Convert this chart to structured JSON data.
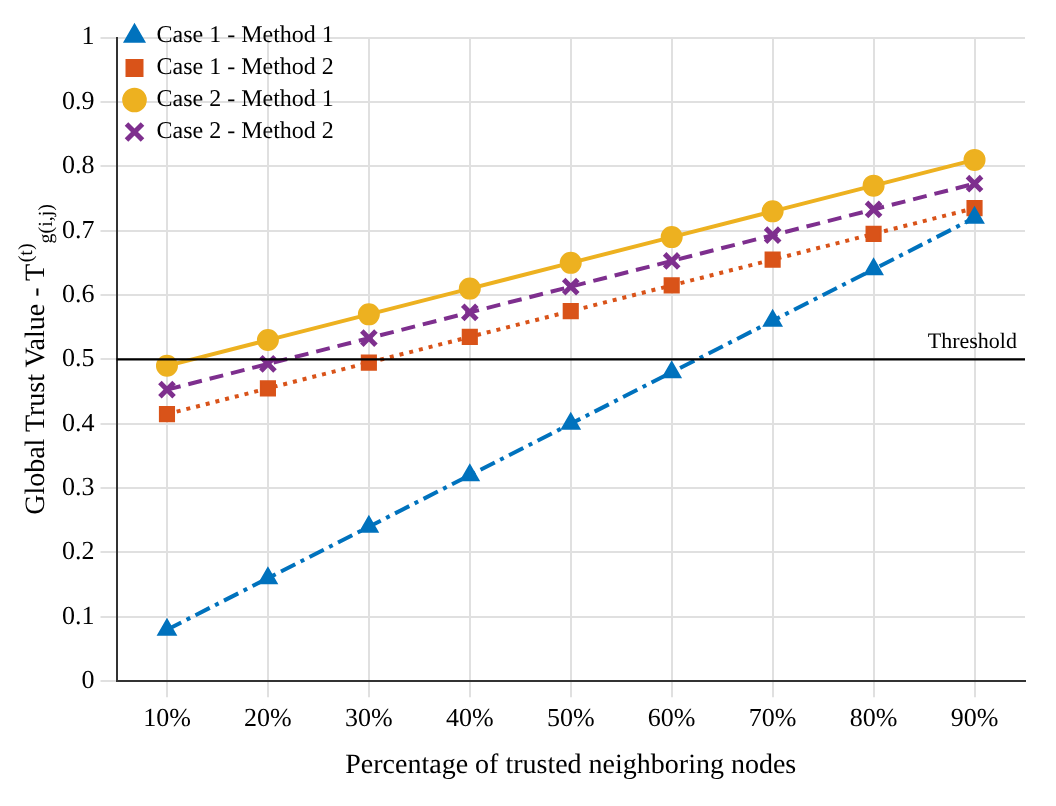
{
  "chart_data": {
    "type": "line",
    "xlabel": "Percentage of trusted neighboring nodes",
    "ylabel": "Global Trust Value - T$^{(t)}$$_{g(i,j)}$",
    "categories": [
      "10%",
      "20%",
      "30%",
      "40%",
      "50%",
      "60%",
      "70%",
      "80%",
      "90%"
    ],
    "series": [
      {
        "name": "Case 1 - Method 1",
        "color": "#0072bd",
        "marker": "triangle",
        "line_style": "dashdot",
        "values": [
          0.08,
          0.16,
          0.24,
          0.32,
          0.4,
          0.48,
          0.56,
          0.64,
          0.72
        ]
      },
      {
        "name": "Case 1 - Method 2",
        "color": "#d95319",
        "marker": "square",
        "line_style": "dotted",
        "values": [
          0.415,
          0.455,
          0.495,
          0.535,
          0.575,
          0.615,
          0.655,
          0.695,
          0.735
        ]
      },
      {
        "name": "Case 2 - Method 1",
        "color": "#edb120",
        "marker": "circle",
        "line_style": "solid",
        "values": [
          0.49,
          0.53,
          0.57,
          0.61,
          0.65,
          0.69,
          0.73,
          0.77,
          0.81
        ]
      },
      {
        "name": "Case 2 - Method 2",
        "color": "#7e2f8e",
        "marker": "cross",
        "line_style": "dashed",
        "values": [
          0.453,
          0.493,
          0.533,
          0.573,
          0.613,
          0.653,
          0.693,
          0.733,
          0.773
        ]
      }
    ],
    "ylim": [
      0,
      1
    ],
    "yticks": [
      0,
      0.1,
      0.2,
      0.3,
      0.4,
      0.5,
      0.6,
      0.7,
      0.8,
      0.9,
      1
    ],
    "ref_lines": [
      {
        "axis": "y",
        "value": 0.5,
        "label": "Threshold",
        "color": "#000000"
      }
    ],
    "grid": true,
    "legend": "top left"
  }
}
